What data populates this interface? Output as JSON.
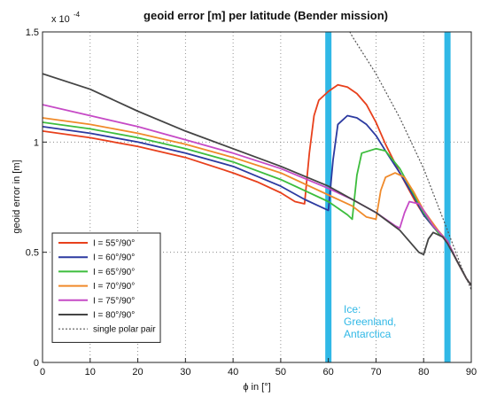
{
  "chart_data": {
    "type": "line",
    "title": "geoid error [m] per latitude (Bender mission)",
    "xlabel": "ϕ in [°]",
    "ylabel": "geoid error in [m]",
    "y_exponent_label": "x 10",
    "y_exponent_power": "-4",
    "xlim": [
      0,
      90
    ],
    "ylim": [
      0,
      1.5
    ],
    "x_ticks": [
      "0",
      "10",
      "20",
      "30",
      "40",
      "50",
      "60",
      "70",
      "80",
      "90"
    ],
    "y_ticks": [
      "0",
      "0.5",
      "1",
      "1.5"
    ],
    "grid": true,
    "legend_position": "bottom-left",
    "series": [
      {
        "name": "I = 55°/90°",
        "color": "#e8401c",
        "x": [
          0,
          10,
          20,
          30,
          40,
          45,
          50,
          53,
          55,
          56,
          57,
          58,
          60,
          62,
          64,
          66,
          68,
          70,
          72,
          75,
          78,
          80,
          83,
          85,
          87,
          89,
          90
        ],
        "y": [
          1.05,
          1.02,
          0.98,
          0.93,
          0.86,
          0.82,
          0.77,
          0.73,
          0.72,
          0.95,
          1.12,
          1.19,
          1.23,
          1.26,
          1.25,
          1.22,
          1.17,
          1.09,
          0.99,
          0.86,
          0.74,
          0.67,
          0.59,
          0.55,
          0.46,
          0.38,
          0.35
        ]
      },
      {
        "name": "I = 60°/90°",
        "color": "#2c3aa0",
        "x": [
          0,
          10,
          20,
          30,
          40,
          50,
          55,
          58,
          60,
          61,
          62,
          64,
          66,
          68,
          70,
          72,
          75,
          78,
          80,
          83,
          85,
          87,
          89,
          90
        ],
        "y": [
          1.07,
          1.04,
          1.0,
          0.95,
          0.89,
          0.8,
          0.74,
          0.71,
          0.69,
          0.92,
          1.08,
          1.12,
          1.11,
          1.08,
          1.03,
          0.96,
          0.86,
          0.75,
          0.67,
          0.59,
          0.55,
          0.46,
          0.38,
          0.35
        ]
      },
      {
        "name": "I = 65°/90°",
        "color": "#3dbd3d",
        "x": [
          0,
          10,
          20,
          30,
          40,
          50,
          60,
          64,
          65,
          66,
          67,
          70,
          72,
          75,
          78,
          80,
          83,
          85,
          87,
          89,
          90
        ],
        "y": [
          1.09,
          1.06,
          1.02,
          0.97,
          0.91,
          0.83,
          0.73,
          0.67,
          0.65,
          0.85,
          0.95,
          0.97,
          0.96,
          0.88,
          0.76,
          0.68,
          0.59,
          0.55,
          0.46,
          0.38,
          0.35
        ]
      },
      {
        "name": "I = 70°/90°",
        "color": "#f08a2a",
        "x": [
          0,
          10,
          20,
          30,
          40,
          50,
          60,
          65,
          68,
          70,
          71,
          72,
          74,
          76,
          78,
          80,
          83,
          85,
          87,
          89,
          90
        ],
        "y": [
          1.11,
          1.08,
          1.04,
          0.99,
          0.93,
          0.86,
          0.76,
          0.71,
          0.66,
          0.65,
          0.78,
          0.84,
          0.86,
          0.84,
          0.77,
          0.69,
          0.6,
          0.55,
          0.46,
          0.38,
          0.35
        ]
      },
      {
        "name": "I = 75°/90°",
        "color": "#c64ac6",
        "x": [
          0,
          10,
          20,
          30,
          40,
          50,
          60,
          65,
          70,
          74,
          75,
          76,
          77,
          79,
          80,
          82,
          85,
          87,
          89,
          90
        ],
        "y": [
          1.17,
          1.12,
          1.07,
          1.01,
          0.95,
          0.88,
          0.79,
          0.74,
          0.68,
          0.62,
          0.61,
          0.68,
          0.73,
          0.72,
          0.69,
          0.62,
          0.55,
          0.46,
          0.38,
          0.35
        ]
      },
      {
        "name": "I = 80°/90°",
        "color": "#444444",
        "x": [
          0,
          10,
          20,
          30,
          40,
          50,
          60,
          65,
          70,
          75,
          79,
          80,
          81,
          82,
          84,
          85,
          87,
          89,
          90
        ],
        "y": [
          1.31,
          1.24,
          1.14,
          1.05,
          0.97,
          0.89,
          0.8,
          0.74,
          0.68,
          0.6,
          0.5,
          0.49,
          0.56,
          0.59,
          0.57,
          0.54,
          0.46,
          0.38,
          0.35
        ]
      },
      {
        "name": "single polar pair",
        "color": "#555555",
        "dashed": true,
        "x": [
          62,
          65,
          70,
          75,
          80,
          85,
          88,
          90
        ],
        "y": [
          1.6,
          1.48,
          1.31,
          1.11,
          0.88,
          0.6,
          0.43,
          0.33
        ]
      }
    ],
    "vertical_markers": [
      {
        "x": 60,
        "color": "#30b8e6"
      },
      {
        "x": 85,
        "color": "#30b8e6"
      }
    ],
    "annotation": {
      "lines": [
        "Ice:",
        "Greenland,",
        "Antarctica"
      ],
      "color": "#30b8e6"
    }
  }
}
